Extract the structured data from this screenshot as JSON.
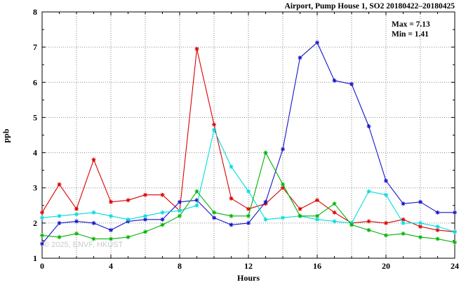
{
  "header": {
    "title": "Airport, Pump House 1, SO2 20180422–20180425"
  },
  "annotation": {
    "max_label": "Max = 7.13",
    "min_label": "Min = 1.41"
  },
  "watermark": "© 2025, ENVF, HKUST",
  "chart_data": {
    "type": "line",
    "title": "Airport, Pump House 1, SO2 20180422–20180425",
    "xlabel": "Hours",
    "ylabel": "ppb",
    "xlim": [
      0,
      24
    ],
    "ylim": [
      1,
      8
    ],
    "xticks": [
      0,
      4,
      8,
      12,
      16,
      20,
      24
    ],
    "yticks": [
      1,
      2,
      3,
      4,
      5,
      6,
      7,
      8
    ],
    "grid": true,
    "legend": "none",
    "marker": "asterisk",
    "max_value": 7.13,
    "min_value": 1.41,
    "x": [
      0,
      1,
      2,
      3,
      4,
      5,
      6,
      7,
      8,
      9,
      10,
      11,
      12,
      13,
      14,
      15,
      16,
      17,
      18,
      19,
      20,
      21,
      22,
      23,
      24
    ],
    "series": [
      {
        "name": "series-red",
        "color": "#dc0000",
        "values": [
          2.3,
          3.1,
          2.4,
          3.8,
          2.6,
          2.65,
          2.8,
          2.8,
          2.35,
          6.95,
          4.8,
          2.7,
          2.4,
          2.55,
          3.0,
          2.4,
          2.65,
          2.3,
          2.0,
          2.05,
          2.0,
          2.1,
          1.9,
          1.8,
          1.75
        ]
      },
      {
        "name": "series-blue",
        "color": "#1414cc",
        "values": [
          1.41,
          2.0,
          2.05,
          2.0,
          1.8,
          2.05,
          2.1,
          2.1,
          2.6,
          2.65,
          2.15,
          1.95,
          2.0,
          2.6,
          4.1,
          6.7,
          7.13,
          6.05,
          5.95,
          4.75,
          3.2,
          2.55,
          2.6,
          2.3,
          2.3
        ]
      },
      {
        "name": "series-cyan",
        "color": "#00dcdc",
        "values": [
          2.15,
          2.2,
          2.25,
          2.3,
          2.2,
          2.1,
          2.2,
          2.3,
          2.35,
          2.5,
          4.65,
          3.6,
          2.9,
          2.1,
          2.15,
          2.2,
          2.1,
          2.05,
          2.0,
          2.9,
          2.8,
          2.0,
          2.0,
          1.9,
          1.75
        ]
      },
      {
        "name": "series-green",
        "color": "#00b400",
        "values": [
          1.65,
          1.6,
          1.7,
          1.55,
          1.55,
          1.6,
          1.75,
          1.95,
          2.2,
          2.9,
          2.3,
          2.2,
          2.2,
          4.0,
          3.1,
          2.2,
          2.2,
          2.55,
          1.95,
          1.8,
          1.65,
          1.7,
          1.6,
          1.55,
          1.45
        ]
      }
    ]
  }
}
